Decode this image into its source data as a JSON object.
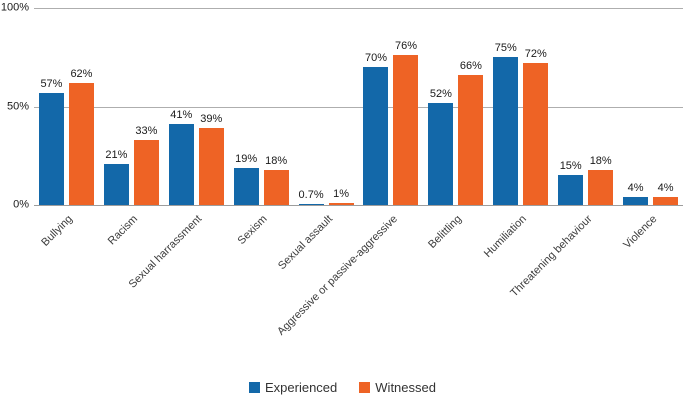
{
  "chart_data": {
    "type": "bar",
    "title": "",
    "xlabel": "",
    "ylabel": "",
    "categories": [
      "Bullying",
      "Racism",
      "Sexual harrassment",
      "Sexism",
      "Sexual assault",
      "Aggressive or passive-aggressive",
      "Belittling",
      "Humiliation",
      "Threatening behaviour",
      "Violence"
    ],
    "series": [
      {
        "name": "Experienced",
        "color": "#1368A9",
        "values": [
          57,
          21,
          41,
          19,
          0.7,
          70,
          52,
          75,
          15,
          4
        ]
      },
      {
        "name": "Witnessed",
        "color": "#EE6325",
        "values": [
          62,
          33,
          39,
          18,
          1,
          76,
          66,
          72,
          18,
          4
        ]
      }
    ],
    "value_suffix": "%",
    "value_labels": [
      [
        "57%",
        "21%",
        "41%",
        "19%",
        "0.7%",
        "70%",
        "52%",
        "75%",
        "15%",
        "4%"
      ],
      [
        "62%",
        "33%",
        "39%",
        "18%",
        "1%",
        "76%",
        "66%",
        "72%",
        "18%",
        "4%"
      ]
    ],
    "y_ticks": [
      {
        "label": "0%",
        "value": 0
      },
      {
        "label": "50%",
        "value": 50
      },
      {
        "label": "100%",
        "value": 100
      }
    ],
    "gridline_values": [
      50,
      100
    ],
    "ylim": [
      0,
      100
    ],
    "grid": true,
    "legend_position": "bottom",
    "x_label_rotation_deg": -45
  },
  "legend": {
    "items": [
      {
        "label": "Experienced",
        "color": "#1368A9"
      },
      {
        "label": "Witnessed",
        "color": "#EE6325"
      }
    ]
  },
  "colors": {
    "experienced_blue": "#1368A9",
    "witnessed_orange": "#EE6325",
    "gridline": "#AEAEAE",
    "axis_line": "#9D9D9D",
    "tick_text": "#1A1A1A",
    "category_text": "#3C3C3C",
    "background": "#FFFFFF"
  }
}
